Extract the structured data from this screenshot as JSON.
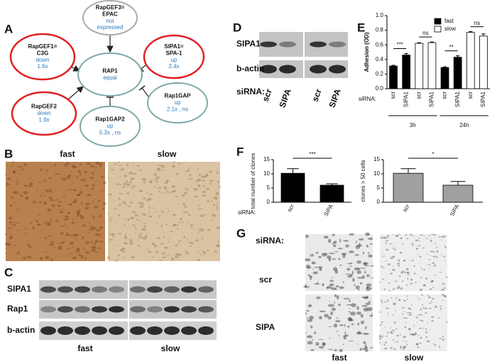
{
  "panel_labels": [
    "A",
    "B",
    "C",
    "D",
    "E",
    "F",
    "G"
  ],
  "diagram": {
    "nodes": [
      {
        "name": [
          "RapGEF3=",
          "EPAC"
        ],
        "status": [
          "not",
          "expressed"
        ]
      },
      {
        "name": [
          "SIPA1=",
          "SPA-1"
        ],
        "status": [
          "up",
          "2.4x"
        ]
      },
      {
        "name": [
          "RapGEF1=",
          "C3G"
        ],
        "status": [
          "down",
          "1.6x"
        ]
      },
      {
        "name": [
          "RAP1"
        ],
        "status": [
          "equal"
        ]
      },
      {
        "name": [
          "RapGEF2"
        ],
        "status": [
          "down",
          "1.9x"
        ]
      },
      {
        "name": [
          "Rap1GAP"
        ],
        "status": [
          "up",
          "2.1x , ns"
        ]
      },
      {
        "name": [
          "Rap1GAP2"
        ],
        "status": [
          "up",
          "5.3x , ns"
        ]
      }
    ]
  },
  "panel_b": {
    "labels": [
      "fast",
      "slow"
    ]
  },
  "panel_c": {
    "rows": [
      "SIPA1",
      "Rap1",
      "b-actin"
    ],
    "groups": [
      "fast",
      "slow"
    ]
  },
  "panel_d": {
    "rows": [
      "SIPA1",
      "b-actin"
    ],
    "xlabel": "siRNA:",
    "lanes": [
      "scr",
      "SIPA",
      "scr",
      "SIPA"
    ]
  },
  "panel_g": {
    "xlabel": "siRNA:",
    "rows": [
      "scr",
      "SIPA"
    ],
    "columns": [
      "fast",
      "slow"
    ]
  },
  "chart_data": [
    {
      "type": "bar",
      "ylabel": "Adhesion (OD)",
      "xlabel": "siRNA:",
      "categories": [
        "scr",
        "SIPA1",
        "scr",
        "SIPA1",
        "scr",
        "SIPA1",
        "scr",
        "SIPA1"
      ],
      "groups": [
        "3h",
        "24h"
      ],
      "series": [
        {
          "name": "fast",
          "color": "#000000",
          "values": [
            0.31,
            0.46,
            null,
            null,
            0.29,
            0.43,
            null,
            null
          ],
          "errors": [
            0.01,
            0.02,
            null,
            null,
            0.01,
            0.02,
            null,
            null
          ]
        },
        {
          "name": "slow",
          "color": "#ffffff",
          "values": [
            null,
            null,
            0.62,
            0.63,
            null,
            null,
            0.77,
            0.72
          ],
          "errors": [
            null,
            null,
            0.01,
            0.01,
            null,
            null,
            0.01,
            0.03
          ]
        }
      ],
      "annotations": [
        "***",
        "ns",
        "**",
        "ns"
      ],
      "ylim": [
        0,
        1.0
      ],
      "yticks": [
        {
          "value": 0,
          "label": "0.0"
        },
        0.2,
        0.4,
        0.6,
        0.8,
        {
          "value": 1.0,
          "label": "1.0"
        }
      ]
    },
    {
      "type": "bar",
      "ylabel": "total number of clones",
      "xlabel": "siRNA:",
      "categories": [
        "scr",
        "SIPA"
      ],
      "series": [
        {
          "color": "#000000",
          "values": [
            10.2,
            6.0
          ],
          "errors": [
            1.6,
            0.5
          ]
        }
      ],
      "annotations": [
        "***"
      ],
      "ylim": [
        0,
        15
      ],
      "yticks": [
        0,
        5,
        10,
        15
      ]
    },
    {
      "type": "bar",
      "ylabel": "clones > 50 cells",
      "categories": [
        "scr",
        "SIPA"
      ],
      "series": [
        {
          "color": "#a0a0a0",
          "values": [
            10.2,
            6.0
          ],
          "errors": [
            1.6,
            1.3
          ]
        }
      ],
      "annotations": [
        "*"
      ],
      "ylim": [
        0,
        15
      ],
      "yticks": [
        0,
        5,
        10,
        15
      ]
    }
  ]
}
